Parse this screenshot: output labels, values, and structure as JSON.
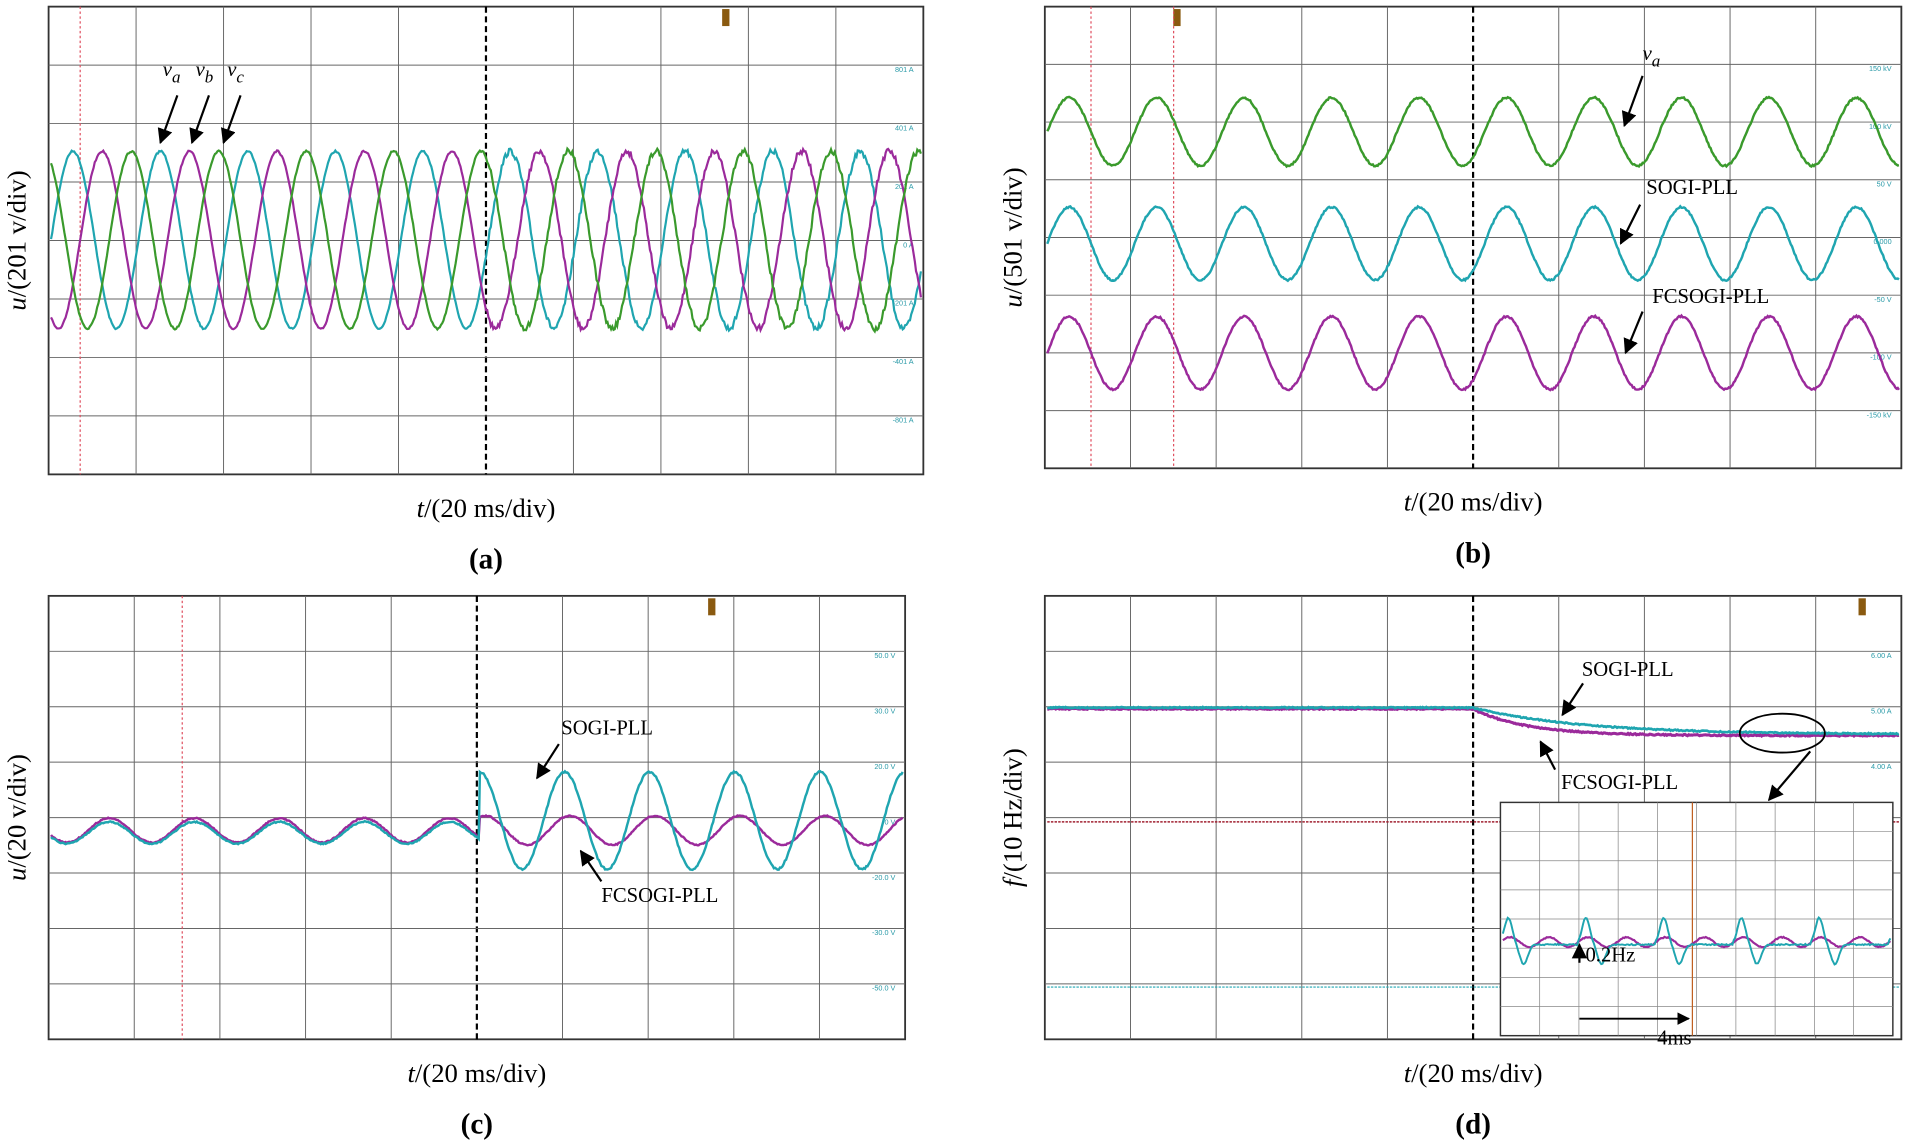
{
  "panels": [
    {
      "caption": "(a)",
      "y_label": {
        "var": "u",
        "unit": "/(201 v/div)"
      },
      "x_label": {
        "var": "t",
        "unit": "/(20 ms/div)"
      },
      "annotations": [
        {
          "symbol": "v",
          "subscript": "a"
        },
        {
          "symbol": "v",
          "subscript": "b"
        },
        {
          "symbol": "v",
          "subscript": "c"
        }
      ],
      "scale_labels": [
        "801 A",
        "401 A",
        "201 A",
        "0 A",
        "-201 A",
        "-401 A",
        "-801 A"
      ]
    },
    {
      "caption": "(b)",
      "y_label": {
        "var": "u",
        "unit": "/(501 v/div)"
      },
      "x_label": {
        "var": "t",
        "unit": "/(20 ms/div)"
      },
      "annotations": [
        {
          "symbol": "v",
          "subscript": "a"
        },
        {
          "text": "SOGI-PLL"
        },
        {
          "text": "FCSOGI-PLL"
        }
      ],
      "scale_labels": [
        "150 kV",
        "100 kV",
        "50 V",
        "0.000",
        "-50 V",
        "-100 V",
        "-150 kV"
      ]
    },
    {
      "caption": "(c)",
      "y_label": {
        "var": "u",
        "unit": "/(20 v/div)"
      },
      "x_label": {
        "var": "t",
        "unit": "/(20 ms/div)"
      },
      "annotations": [
        {
          "text": "SOGI-PLL"
        },
        {
          "text": "FCSOGI-PLL"
        }
      ],
      "scale_labels": [
        "50.0 V",
        "30.0 V",
        "20.0 V",
        "0 V",
        "-20.0 V",
        "-30.0 V",
        "-50.0 V"
      ]
    },
    {
      "caption": "(d)",
      "y_label": {
        "var": "f",
        "unit": "/(10 Hz/div)"
      },
      "x_label": {
        "var": "t",
        "unit": "/(20 ms/div)"
      },
      "annotations": [
        {
          "text": "SOGI-PLL"
        },
        {
          "text": "FCSOGI-PLL"
        },
        {
          "text": "0.2Hz"
        },
        {
          "text": "4ms"
        }
      ],
      "scale_labels": [
        "6.00 A",
        "5.00 A",
        "4.00 A"
      ]
    }
  ]
}
